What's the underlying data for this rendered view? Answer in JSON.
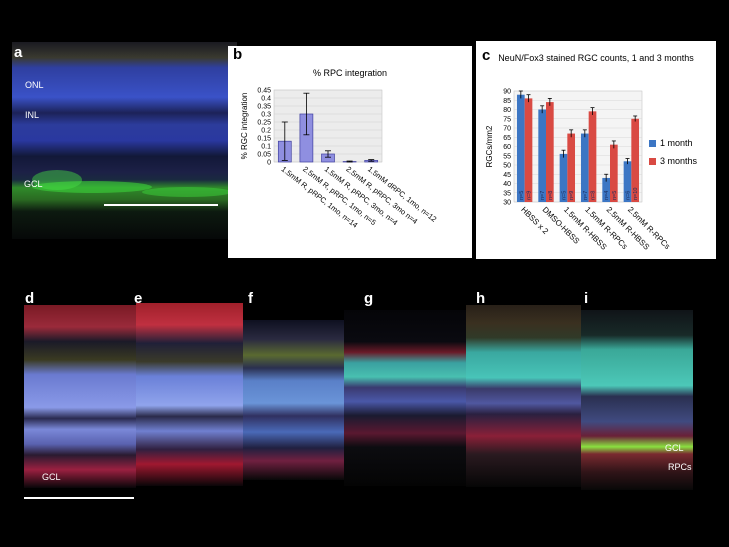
{
  "panel_letters": {
    "a": "a",
    "b": "b",
    "c": "c",
    "d": "d",
    "e": "e",
    "f": "f",
    "g": "g",
    "h": "h",
    "i": "i"
  },
  "panel_a": {
    "onl": "ONL",
    "inl": "INL",
    "gcl": "GCL"
  },
  "panel_d": {
    "gcl": "GCL"
  },
  "panel_i": {
    "gcl": "GCL",
    "rpcs": "RPCs"
  },
  "chart_data": [
    {
      "type": "bar",
      "title": "% RPC integration",
      "ylabel": "% RGC integration",
      "xlabel": "",
      "ylim": [
        0,
        0.45
      ],
      "yticks": [
        "0",
        "0.05",
        "0.1",
        "0.15",
        "0.2",
        "0.25",
        "0.3",
        "0.35",
        "0.4",
        "0.45"
      ],
      "categories": [
        "1.5mM R, pRPC, 1mo, n=14",
        "2.5mM R, pRPC, 1mo, n=5",
        "1.5mM R, pRPC, 3mo, n=4",
        "2.5mM R, pRPC, 3mo n=4",
        "1.5mM dRPC, 1mo, n=12"
      ],
      "values": [
        0.13,
        0.3,
        0.05,
        0.003,
        0.01
      ],
      "errors": [
        0.12,
        0.13,
        0.02,
        0.003,
        0.005
      ],
      "grid": true,
      "colors": {
        "bar": "#8f8fe0",
        "edge": "#4040a0"
      }
    },
    {
      "type": "bar",
      "title": "NeuN/Fox3 stained RGC counts, 1 and 3 months",
      "ylabel": "RGCs/mm2",
      "xlabel": "",
      "ylim": [
        30,
        90
      ],
      "yticks": [
        "30",
        "35",
        "40",
        "45",
        "50",
        "55",
        "60",
        "65",
        "70",
        "75",
        "80",
        "85",
        "90"
      ],
      "categories": [
        "HBSS x 2",
        "DMSO-HBSS",
        "1.5mM R-HBSS",
        "1.5mM R-RPCs",
        "2.5mM R-HBSS",
        "2.5mM R-RPCs"
      ],
      "series": [
        {
          "name": "1 month",
          "values": [
            88,
            80,
            56,
            67,
            43,
            52
          ],
          "errors": [
            2,
            2,
            2,
            2,
            2,
            1.5
          ],
          "n": [
            "n=5",
            "n=7",
            "n=5",
            "n=7",
            "n=4",
            "n=6"
          ]
        },
        {
          "name": "3 months",
          "values": [
            86,
            84,
            67,
            79,
            61,
            75
          ],
          "errors": [
            2,
            2,
            2,
            2,
            2,
            1.5
          ],
          "n": [
            "n=9",
            "n=8",
            "n=9",
            "n=8",
            "n=5",
            "n=10"
          ]
        }
      ],
      "legend_position": "right",
      "grid": true,
      "colors": {
        "1 month": "#3c76c4",
        "3 months": "#d94a43"
      }
    }
  ]
}
